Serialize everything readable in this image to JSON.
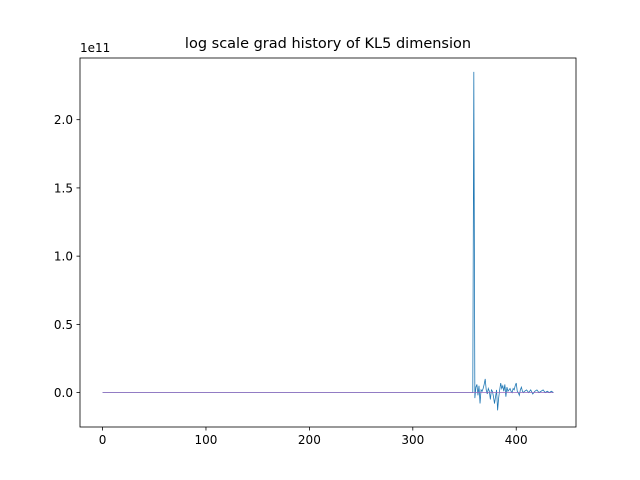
{
  "chart_data": {
    "type": "line",
    "title": "log scale grad history of KL5 dimension",
    "xlabel": "",
    "ylabel": "",
    "y_offset_label": "1e11",
    "y_scale": 100000000000.0,
    "xlim": [
      -21.8,
      457.8
    ],
    "ylim": [
      -0.252,
      2.452
    ],
    "x_ticks": [
      0,
      100,
      200,
      300,
      400
    ],
    "x_tick_labels": [
      "0",
      "100",
      "200",
      "300",
      "400"
    ],
    "y_ticks": [
      0.0,
      0.5,
      1.0,
      1.5,
      2.0
    ],
    "y_tick_labels": [
      "0.0",
      "0.5",
      "1.0",
      "1.5",
      "2.0"
    ],
    "grid": false,
    "series": [
      {
        "color": "#1f77b4",
        "x": [
          0,
          100,
          200,
          300,
          355,
          357,
          358,
          359,
          360,
          361,
          362,
          363,
          364,
          365,
          366,
          367,
          368,
          369,
          370,
          371,
          372,
          373,
          374,
          375,
          376,
          377,
          378,
          379,
          380,
          381,
          382,
          383,
          384,
          385,
          386,
          387,
          388,
          389,
          390,
          391,
          392,
          393,
          394,
          395,
          396,
          397,
          398,
          399,
          400,
          401,
          402,
          403,
          404,
          405,
          406,
          407,
          408,
          410,
          412,
          414,
          416,
          418,
          420,
          422,
          424,
          426,
          428,
          430,
          432,
          434,
          436
        ],
        "y": [
          0,
          0,
          0,
          0,
          0,
          0,
          0,
          2.35,
          -0.04,
          0.04,
          0.06,
          -0.02,
          0.05,
          -0.08,
          0.02,
          0.01,
          0.03,
          0.06,
          0.1,
          0.02,
          -0.01,
          0.03,
          0.01,
          -0.05,
          0.02,
          0.01,
          -0.03,
          -0.08,
          -0.03,
          0.02,
          -0.13,
          -0.04,
          0.02,
          0.07,
          0.03,
          0.05,
          0.01,
          0.06,
          -0.03,
          0.04,
          0.01,
          0.02,
          0.03,
          0.01,
          0.0,
          0.03,
          0.02,
          0.05,
          0.07,
          0.01,
          0.0,
          -0.02,
          0.02,
          0.04,
          0.01,
          0.0,
          0.01,
          0.02,
          0.0,
          0.02,
          -0.01,
          0.01,
          0.02,
          0.0,
          0.01,
          0.02,
          0.0,
          0.01,
          0.0,
          0.01,
          0.0
        ]
      },
      {
        "color": "#9467bd",
        "x": [
          0,
          436
        ],
        "y": [
          0,
          0
        ]
      }
    ]
  }
}
